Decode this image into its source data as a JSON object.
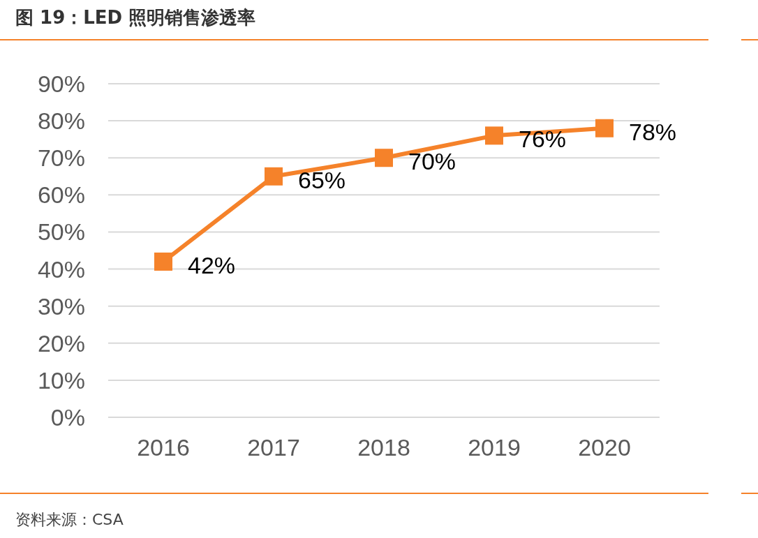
{
  "chart_data": {
    "type": "line",
    "title": "图 19：LED 照明销售渗透率",
    "categories": [
      "2016",
      "2017",
      "2018",
      "2019",
      "2020"
    ],
    "series": [
      {
        "color": "#f5822a",
        "values": [
          42,
          65,
          70,
          76,
          78
        ],
        "value_labels": [
          "42%",
          "65%",
          "70%",
          "76%",
          "78%"
        ]
      }
    ],
    "ylim": [
      0,
      90
    ],
    "yticks": [
      {
        "value": 0,
        "label": "0%"
      },
      {
        "value": 10,
        "label": "10%"
      },
      {
        "value": 20,
        "label": "20%"
      },
      {
        "value": 30,
        "label": "30%"
      },
      {
        "value": 40,
        "label": "40%"
      },
      {
        "value": 50,
        "label": "50%"
      },
      {
        "value": 60,
        "label": "60%"
      },
      {
        "value": 70,
        "label": "70%"
      },
      {
        "value": 80,
        "label": "80%"
      },
      {
        "value": 90,
        "label": "90%"
      }
    ],
    "grid": "y",
    "marker": "square",
    "line_style": "solid",
    "annotations": [
      "资料来源：CSA"
    ]
  }
}
